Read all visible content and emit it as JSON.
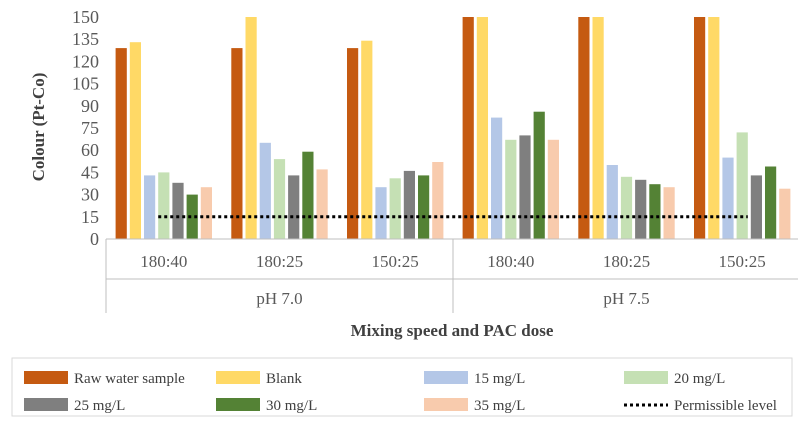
{
  "chart_data": {
    "type": "bar",
    "xlabel": "Mixing speed and PAC dose",
    "ylabel": "Colour (Pt-Co)",
    "ylim": [
      0,
      150
    ],
    "yticks": [
      0,
      15,
      30,
      45,
      60,
      75,
      90,
      105,
      120,
      135,
      150
    ],
    "categories": [
      "180:40",
      "180:25",
      "150:25",
      "180:40",
      "180:25",
      "150:25"
    ],
    "groups": [
      {
        "label": "pH 7.0",
        "categories": [
          "180:40",
          "180:25",
          "150:25"
        ]
      },
      {
        "label": "pH 7.5",
        "categories": [
          "180:40",
          "180:25",
          "150:25"
        ]
      }
    ],
    "series": [
      {
        "name": "Raw water sample",
        "color": "#C55A11",
        "values": [
          129,
          129,
          129,
          150,
          150,
          150
        ]
      },
      {
        "name": "Blank",
        "color": "#FFD966",
        "values": [
          133,
          150,
          134,
          150,
          150,
          150
        ]
      },
      {
        "name": "15 mg/L",
        "color": "#B4C7E7",
        "values": [
          43,
          65,
          35,
          82,
          50,
          55
        ]
      },
      {
        "name": "20 mg/L",
        "color": "#C5E0B4",
        "values": [
          45,
          54,
          41,
          67,
          42,
          72
        ]
      },
      {
        "name": "25 mg/L",
        "color": "#7F7F7F",
        "values": [
          38,
          43,
          46,
          70,
          40,
          43
        ]
      },
      {
        "name": "30 mg/L",
        "color": "#548235",
        "values": [
          30,
          59,
          43,
          86,
          37,
          49
        ]
      },
      {
        "name": "35 mg/L",
        "color": "#F8CBAD",
        "values": [
          35,
          47,
          52,
          67,
          35,
          34
        ]
      }
    ],
    "reference_line": {
      "name": "Permissible level",
      "value": 15,
      "style": "dotted",
      "color": "#000000"
    },
    "legend_position": "bottom",
    "grid": false
  }
}
